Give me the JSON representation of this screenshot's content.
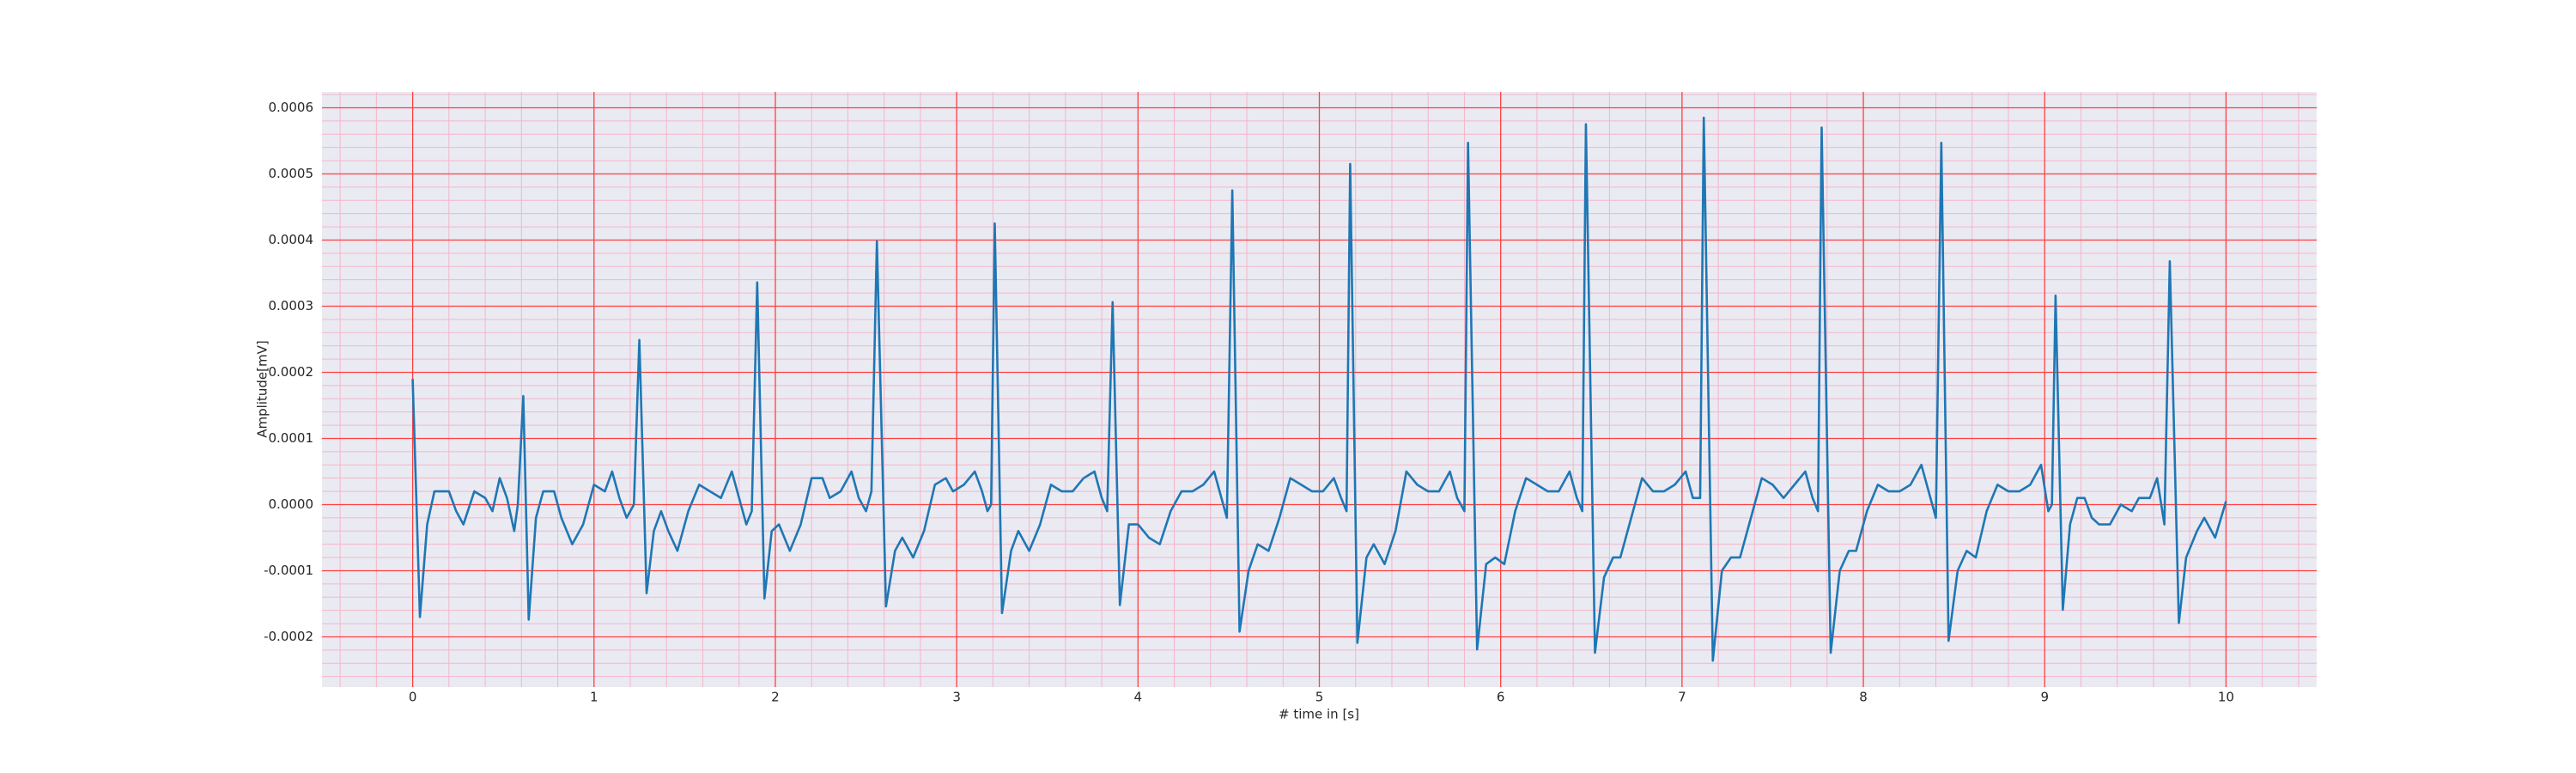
{
  "chart_data": {
    "type": "line",
    "xlabel": "# time in [s]",
    "ylabel": "Amplitude[mV]",
    "color": "#1f77b4",
    "background": "#eaeaf2",
    "grid": true,
    "grid_color": "#ff4040",
    "minor_grid": true,
    "minor_grid_color": "#f4b6c8",
    "xlim": [
      -0.5,
      10.5
    ],
    "xticks": [
      0,
      1,
      2,
      3,
      4,
      5,
      6,
      7,
      8,
      9,
      10
    ],
    "ylim": [
      -0.000276,
      0.000624
    ],
    "yticks": [
      -0.0002,
      -0.0001,
      {
        "value": 0,
        "label": "0.0000"
      },
      0.0001,
      0.0002,
      0.0003,
      0.0004,
      0.0005,
      0.0006
    ],
    "x": [
      0,
      0.04,
      0.08,
      0.12,
      0.16,
      0.2,
      0.24,
      0.28,
      0.34,
      0.4,
      0.44,
      0.48,
      0.52,
      0.56,
      0.58,
      0.61,
      0.64,
      0.68,
      0.72,
      0.78,
      0.82,
      0.88,
      0.94,
      1.0,
      1.06,
      1.1,
      1.14,
      1.18,
      1.22,
      1.25,
      1.29,
      1.33,
      1.37,
      1.41,
      1.46,
      1.52,
      1.58,
      1.64,
      1.7,
      1.76,
      1.8,
      1.84,
      1.87,
      1.9,
      1.94,
      1.98,
      2.02,
      2.08,
      2.14,
      2.2,
      2.26,
      2.3,
      2.36,
      2.42,
      2.46,
      2.5,
      2.53,
      2.56,
      2.61,
      2.66,
      2.7,
      2.76,
      2.82,
      2.88,
      2.94,
      2.98,
      3.04,
      3.1,
      3.14,
      3.17,
      3.19,
      3.21,
      3.25,
      3.3,
      3.34,
      3.4,
      3.46,
      3.52,
      3.58,
      3.64,
      3.7,
      3.76,
      3.8,
      3.83,
      3.86,
      3.9,
      3.95,
      4.0,
      4.06,
      4.12,
      4.18,
      4.24,
      4.3,
      4.36,
      4.42,
      4.46,
      4.49,
      4.52,
      4.56,
      4.61,
      4.66,
      4.72,
      4.78,
      4.84,
      4.9,
      4.96,
      5.02,
      5.08,
      5.12,
      5.15,
      5.17,
      5.21,
      5.26,
      5.3,
      5.36,
      5.42,
      5.48,
      5.54,
      5.6,
      5.66,
      5.72,
      5.76,
      5.8,
      5.82,
      5.87,
      5.92,
      5.97,
      6.02,
      6.08,
      6.14,
      6.2,
      6.26,
      6.32,
      6.38,
      6.42,
      6.45,
      6.47,
      6.52,
      6.57,
      6.62,
      6.66,
      6.72,
      6.78,
      6.84,
      6.9,
      6.96,
      7.02,
      7.06,
      7.1,
      7.12,
      7.17,
      7.22,
      7.27,
      7.32,
      7.38,
      7.44,
      7.5,
      7.56,
      7.62,
      7.68,
      7.72,
      7.75,
      7.77,
      7.82,
      7.87,
      7.92,
      7.96,
      8.02,
      8.08,
      8.14,
      8.2,
      8.26,
      8.32,
      8.36,
      8.4,
      8.43,
      8.47,
      8.52,
      8.57,
      8.62,
      8.68,
      8.74,
      8.8,
      8.86,
      8.92,
      8.98,
      9.02,
      9.04,
      9.06,
      9.1,
      9.14,
      9.18,
      9.22,
      9.26,
      9.3,
      9.36,
      9.42,
      9.48,
      9.52,
      9.58,
      9.62,
      9.66,
      9.69,
      9.74,
      9.78,
      9.84,
      9.88,
      9.94,
      10.0
    ],
    "values": [
      0.00019,
      -0.00017,
      -3e-05,
      2e-05,
      2e-05,
      2e-05,
      -1e-05,
      -3e-05,
      2e-05,
      1e-05,
      -1e-05,
      4e-05,
      1e-05,
      -4e-05,
      0,
      0.000164,
      -0.000174,
      -2e-05,
      2e-05,
      2e-05,
      -2e-05,
      -6e-05,
      -3e-05,
      3e-05,
      2e-05,
      5e-05,
      1e-05,
      -2e-05,
      0,
      0.000249,
      -0.000134,
      -4e-05,
      -1e-05,
      -4e-05,
      -7e-05,
      -1e-05,
      3e-05,
      2e-05,
      1e-05,
      5e-05,
      1e-05,
      -3e-05,
      -1e-05,
      0.000336,
      -0.000142,
      -4e-05,
      -3e-05,
      -7e-05,
      -3e-05,
      4e-05,
      4e-05,
      1e-05,
      2e-05,
      5e-05,
      1e-05,
      -1e-05,
      2e-05,
      0.000398,
      -0.000154,
      -7e-05,
      -5e-05,
      -8e-05,
      -4e-05,
      3e-05,
      4e-05,
      2e-05,
      3e-05,
      5e-05,
      2e-05,
      -1e-05,
      0,
      0.000425,
      -0.000164,
      -7e-05,
      -4e-05,
      -7e-05,
      -3e-05,
      3e-05,
      2e-05,
      2e-05,
      4e-05,
      5e-05,
      1e-05,
      -1e-05,
      0.000306,
      -0.000152,
      -3e-05,
      -3e-05,
      -5e-05,
      -6e-05,
      -1e-05,
      2e-05,
      2e-05,
      3e-05,
      5e-05,
      1e-05,
      -2e-05,
      0.000475,
      -0.000192,
      -0.0001,
      -6e-05,
      -7e-05,
      -2e-05,
      4e-05,
      3e-05,
      2e-05,
      2e-05,
      4e-05,
      1e-05,
      -1e-05,
      0.000515,
      -0.000209,
      -8e-05,
      -6e-05,
      -9e-05,
      -4e-05,
      5e-05,
      3e-05,
      2e-05,
      2e-05,
      5e-05,
      1e-05,
      -1e-05,
      0.000547,
      -0.000219,
      -9e-05,
      -8e-05,
      -9e-05,
      -1e-05,
      4e-05,
      3e-05,
      2e-05,
      2e-05,
      5e-05,
      1e-05,
      -1e-05,
      0.000575,
      -0.000224,
      -0.00011,
      -8e-05,
      -8e-05,
      -2e-05,
      4e-05,
      2e-05,
      2e-05,
      3e-05,
      5e-05,
      1e-05,
      1e-05,
      0.000585,
      -0.000236,
      -0.0001,
      -8e-05,
      -8e-05,
      -2e-05,
      4e-05,
      3e-05,
      1e-05,
      3e-05,
      5e-05,
      1e-05,
      -1e-05,
      0.00057,
      -0.000224,
      -0.0001,
      -7e-05,
      -7e-05,
      -1e-05,
      3e-05,
      2e-05,
      2e-05,
      3e-05,
      6e-05,
      2e-05,
      -2e-05,
      0.000547,
      -0.000206,
      -0.0001,
      -7e-05,
      -8e-05,
      -1e-05,
      3e-05,
      2e-05,
      2e-05,
      3e-05,
      6e-05,
      -1e-05,
      0,
      0.000316,
      -0.000159,
      -3e-05,
      1e-05,
      1e-05,
      -2e-05,
      -3e-05,
      -3e-05,
      0,
      -1e-05,
      1e-05,
      1e-05,
      4e-05,
      -3e-05,
      0.000368,
      -0.000179,
      -8e-05,
      -4e-05,
      -2e-05,
      -5e-05,
      5e-06
    ]
  }
}
